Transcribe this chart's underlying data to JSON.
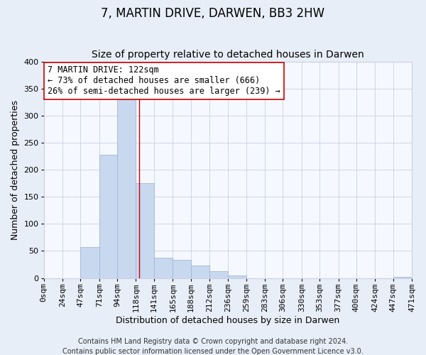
{
  "title": "7, MARTIN DRIVE, DARWEN, BB3 2HW",
  "subtitle": "Size of property relative to detached houses in Darwen",
  "xlabel": "Distribution of detached houses by size in Darwen",
  "ylabel": "Number of detached properties",
  "bin_edges": [
    0,
    24,
    47,
    71,
    94,
    118,
    141,
    165,
    188,
    212,
    236,
    259,
    283,
    306,
    330,
    353,
    377,
    400,
    424,
    447,
    471
  ],
  "counts": [
    0,
    0,
    57,
    228,
    330,
    175,
    38,
    33,
    23,
    12,
    5,
    0,
    0,
    0,
    0,
    0,
    0,
    0,
    0,
    2
  ],
  "bar_color": "#c8d8ef",
  "bar_edge_color": "#a0b8d8",
  "property_line_x": 122,
  "property_line_color": "#cc0000",
  "annotation_line1": "7 MARTIN DRIVE: 122sqm",
  "annotation_line2": "← 73% of detached houses are smaller (666)",
  "annotation_line3": "26% of semi-detached houses are larger (239) →",
  "annotation_box_color": "#ffffff",
  "annotation_box_edge_color": "#cc0000",
  "ylim": [
    0,
    400
  ],
  "xlim": [
    0,
    471
  ],
  "tick_labels": [
    "0sqm",
    "24sqm",
    "47sqm",
    "71sqm",
    "94sqm",
    "118sqm",
    "141sqm",
    "165sqm",
    "188sqm",
    "212sqm",
    "236sqm",
    "259sqm",
    "283sqm",
    "306sqm",
    "330sqm",
    "353sqm",
    "377sqm",
    "400sqm",
    "424sqm",
    "447sqm",
    "471sqm"
  ],
  "footer_line1": "Contains HM Land Registry data © Crown copyright and database right 2024.",
  "footer_line2": "Contains public sector information licensed under the Open Government Licence v3.0.",
  "background_color": "#e8eef8",
  "plot_background_color": "#f5f8ff",
  "grid_color": "#c8d0e0",
  "title_fontsize": 12,
  "subtitle_fontsize": 10,
  "axis_label_fontsize": 9,
  "tick_fontsize": 8,
  "footer_fontsize": 7,
  "annotation_fontsize": 8.5
}
